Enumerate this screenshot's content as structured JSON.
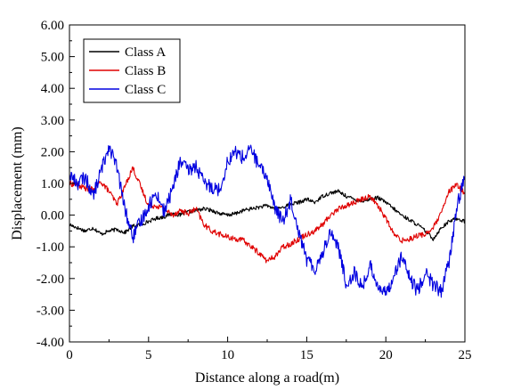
{
  "chart_data": {
    "type": "line",
    "title": "",
    "xlabel": "Distance along a road(m)",
    "ylabel": "Displacement (mm)",
    "xlim": [
      0,
      25
    ],
    "ylim": [
      -4,
      6
    ],
    "x_ticks": [
      0,
      5,
      10,
      15,
      20,
      25
    ],
    "x_tick_labels": [
      "0",
      "5",
      "10",
      "15",
      "20",
      "25"
    ],
    "y_ticks": [
      -4,
      -3,
      -2,
      -1,
      0,
      1,
      2,
      3,
      4,
      5,
      6
    ],
    "y_tick_labels": [
      "-4.00",
      "-3.00",
      "-2.00",
      "-1.00",
      "0.00",
      "1.00",
      "2.00",
      "3.00",
      "4.00",
      "5.00",
      "6.00"
    ],
    "grid": false,
    "legend_position": "top-left",
    "x": [
      0,
      0.5,
      1,
      1.5,
      2,
      2.5,
      3,
      3.5,
      4,
      4.5,
      5,
      5.5,
      6,
      6.5,
      7,
      7.5,
      8,
      8.5,
      9,
      9.5,
      10,
      10.5,
      11,
      11.5,
      12,
      12.5,
      13,
      13.5,
      14,
      14.5,
      15,
      15.5,
      16,
      16.5,
      17,
      17.5,
      18,
      18.5,
      19,
      19.5,
      20,
      20.5,
      21,
      21.5,
      22,
      22.5,
      23,
      23.5,
      24,
      24.5,
      25
    ],
    "series": [
      {
        "name": "Class A",
        "color": "#000000",
        "values": [
          -0.3,
          -0.4,
          -0.5,
          -0.4,
          -0.6,
          -0.5,
          -0.45,
          -0.55,
          -0.35,
          -0.3,
          -0.2,
          -0.1,
          -0.05,
          0.05,
          0.0,
          0.1,
          0.15,
          0.2,
          0.15,
          0.05,
          0.0,
          0.05,
          0.15,
          0.2,
          0.25,
          0.3,
          0.2,
          0.25,
          0.35,
          0.4,
          0.5,
          0.4,
          0.6,
          0.7,
          0.75,
          0.6,
          0.5,
          0.45,
          0.5,
          0.55,
          0.4,
          0.2,
          0.0,
          -0.15,
          -0.3,
          -0.5,
          -0.75,
          -0.4,
          -0.2,
          -0.1,
          -0.2
        ]
      },
      {
        "name": "Class B",
        "color": "#e00000",
        "values": [
          1.0,
          0.95,
          0.85,
          0.8,
          1.05,
          0.75,
          0.35,
          0.9,
          1.5,
          0.9,
          0.3,
          0.3,
          0.2,
          0.0,
          0.15,
          0.05,
          0.2,
          -0.3,
          -0.5,
          -0.6,
          -0.7,
          -0.75,
          -0.8,
          -1.0,
          -1.2,
          -1.45,
          -1.3,
          -1.0,
          -0.9,
          -0.75,
          -0.6,
          -0.5,
          -0.3,
          0.0,
          0.2,
          0.3,
          0.4,
          0.5,
          0.6,
          0.3,
          -0.1,
          -0.6,
          -0.8,
          -0.75,
          -0.65,
          -0.6,
          -0.4,
          0.05,
          0.75,
          0.95,
          0.7
        ]
      },
      {
        "name": "Class C",
        "color": "#0000e0",
        "values": [
          1.3,
          1.0,
          1.2,
          0.6,
          1.4,
          2.2,
          1.5,
          0.2,
          -0.7,
          -0.2,
          0.3,
          0.7,
          0.1,
          0.8,
          1.7,
          1.4,
          1.55,
          1.0,
          0.9,
          0.8,
          1.7,
          2.0,
          1.8,
          2.1,
          1.5,
          1.2,
          0.2,
          -0.2,
          0.5,
          -0.5,
          -1.4,
          -1.7,
          -1.2,
          -0.5,
          -1.0,
          -2.2,
          -1.8,
          -2.3,
          -1.6,
          -2.2,
          -2.5,
          -1.9,
          -1.3,
          -2.0,
          -2.4,
          -1.8,
          -2.2,
          -2.4,
          -1.5,
          0.3,
          1.2
        ]
      }
    ]
  }
}
